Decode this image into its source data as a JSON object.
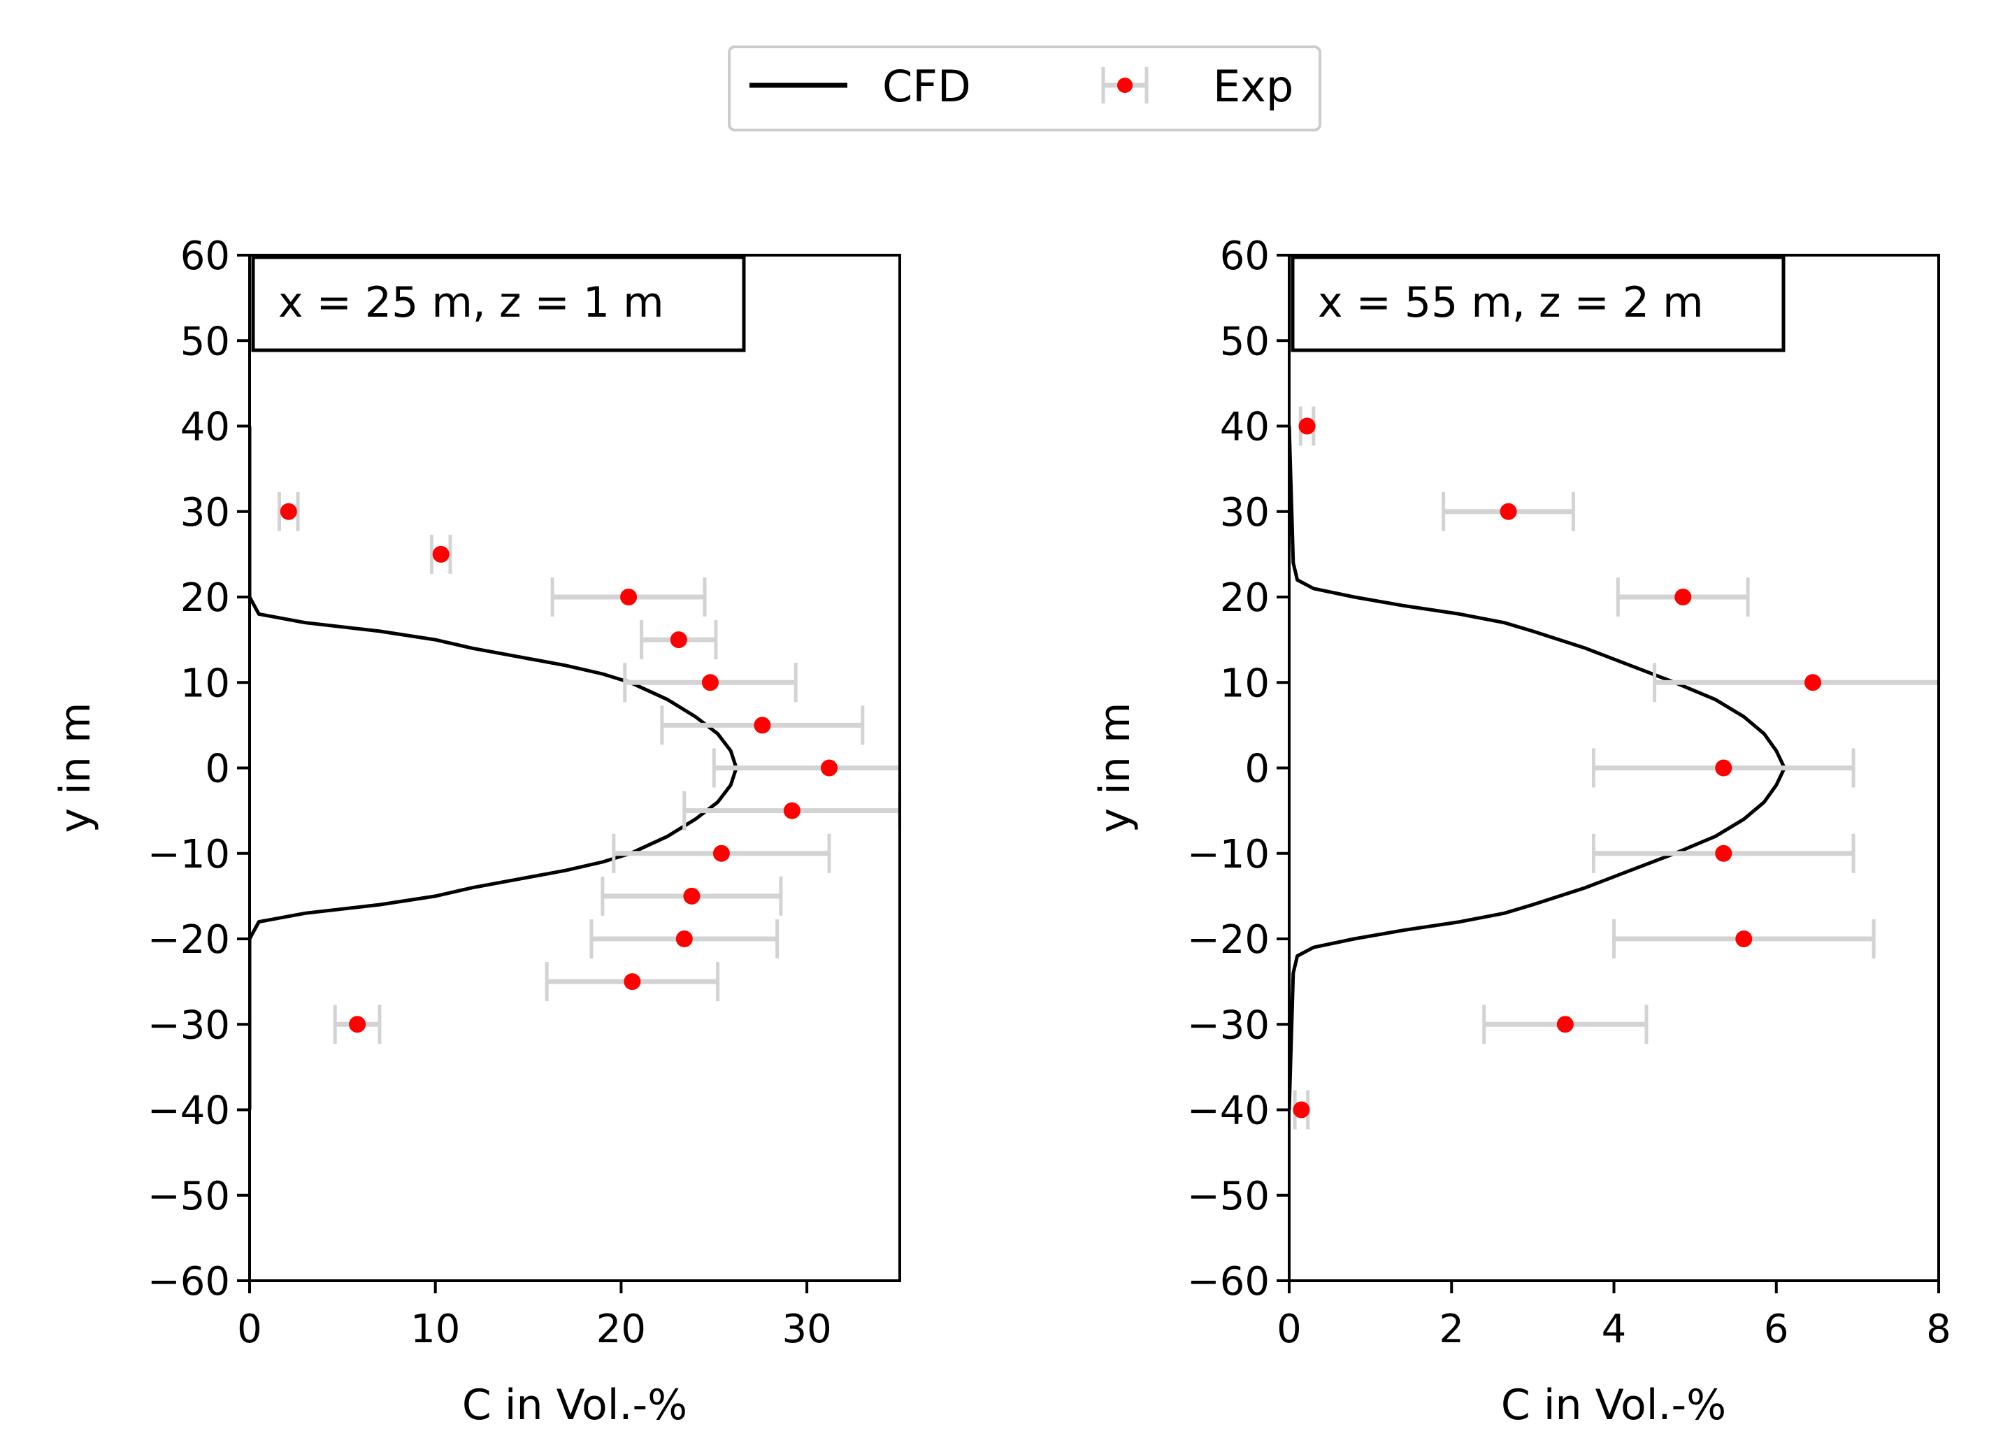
{
  "legend": {
    "cfd_label": "CFD",
    "exp_label": "Exp"
  },
  "colors": {
    "cfd": "#000000",
    "exp": "#ff0000",
    "errorbar": "#d3d3d3"
  },
  "chart_data": [
    {
      "type": "scatter",
      "title": "",
      "annotation": "x = 25 m, z = 1 m",
      "xlabel": "C in Vol.-%",
      "ylabel": "y in m",
      "xlim": [
        0,
        35
      ],
      "ylim": [
        -60,
        60
      ],
      "xticks": [
        "0",
        "10",
        "20",
        "30"
      ],
      "xtick_values": [
        0,
        10,
        20,
        30
      ],
      "yticks": [
        "60",
        "50",
        "40",
        "30",
        "20",
        "10",
        "0",
        "−10",
        "−20",
        "−30",
        "−40",
        "−50",
        "−60"
      ],
      "ytick_values": [
        60,
        50,
        40,
        30,
        20,
        10,
        0,
        -10,
        -20,
        -30,
        -40,
        -50,
        -60
      ],
      "series": [
        {
          "name": "CFD",
          "kind": "line",
          "y": [
            40,
            20,
            18,
            17,
            16,
            15,
            14,
            13,
            12,
            11,
            10,
            8,
            6,
            4,
            2,
            0,
            -2,
            -4,
            -6,
            -8,
            -10,
            -11,
            -12,
            -13,
            -14,
            -15,
            -16,
            -17,
            -18,
            -20,
            -40
          ],
          "x": [
            0,
            0,
            0.5,
            3,
            7,
            10,
            12,
            14.5,
            17,
            19,
            20.5,
            22.5,
            24,
            25.2,
            25.9,
            26.2,
            25.9,
            25.2,
            24,
            22.5,
            20.5,
            19,
            17,
            14.5,
            12,
            10,
            7,
            3,
            0.5,
            0,
            0
          ]
        },
        {
          "name": "Exp",
          "kind": "errorbar",
          "y": [
            30,
            25,
            20,
            15,
            10,
            5,
            0,
            -5,
            -10,
            -15,
            -20,
            -25,
            -30
          ],
          "x": [
            2.1,
            10.3,
            20.4,
            23.1,
            24.8,
            27.6,
            31.2,
            29.2,
            25.4,
            23.8,
            23.4,
            20.6,
            5.8
          ],
          "xerr": [
            0.5,
            0.5,
            4.1,
            2.0,
            4.6,
            5.4,
            6.2,
            5.8,
            5.8,
            4.8,
            5.0,
            4.6,
            1.2
          ]
        }
      ]
    },
    {
      "type": "scatter",
      "title": "",
      "annotation": "x = 55 m, z = 2 m",
      "xlabel": "C in Vol.-%",
      "ylabel": "y in m",
      "xlim": [
        0,
        8
      ],
      "ylim": [
        -60,
        60
      ],
      "xticks": [
        "0",
        "2",
        "4",
        "6",
        "8"
      ],
      "xtick_values": [
        0,
        2,
        4,
        6,
        8
      ],
      "yticks": [
        "60",
        "50",
        "40",
        "30",
        "20",
        "10",
        "0",
        "−10",
        "−20",
        "−30",
        "−40",
        "−50",
        "−60"
      ],
      "ytick_values": [
        60,
        50,
        40,
        30,
        20,
        10,
        0,
        -10,
        -20,
        -30,
        -40,
        -50,
        -60
      ],
      "series": [
        {
          "name": "CFD",
          "kind": "line",
          "y": [
            40,
            24,
            22,
            21,
            20,
            19,
            18,
            17,
            16,
            14,
            12,
            10,
            8,
            6,
            4,
            2,
            0,
            -2,
            -4,
            -6,
            -8,
            -10,
            -12,
            -14,
            -16,
            -17,
            -18,
            -19,
            -20,
            -21,
            -22,
            -24,
            -40
          ],
          "x": [
            0,
            0.05,
            0.1,
            0.3,
            0.8,
            1.4,
            2.1,
            2.65,
            3.0,
            3.65,
            4.2,
            4.75,
            5.25,
            5.6,
            5.85,
            6.0,
            6.1,
            6.0,
            5.85,
            5.6,
            5.25,
            4.75,
            4.2,
            3.65,
            3.0,
            2.65,
            2.1,
            1.4,
            0.8,
            0.3,
            0.1,
            0.05,
            0
          ]
        },
        {
          "name": "Exp",
          "kind": "errorbar",
          "y": [
            40,
            30,
            20,
            10,
            0,
            -10,
            -20,
            -30,
            -40
          ],
          "x": [
            0.22,
            2.7,
            4.85,
            6.45,
            5.35,
            5.35,
            5.6,
            3.4,
            0.15
          ],
          "xerr": [
            0.08,
            0.8,
            0.8,
            1.95,
            1.6,
            1.6,
            1.6,
            1.0,
            0.08
          ]
        }
      ]
    }
  ]
}
